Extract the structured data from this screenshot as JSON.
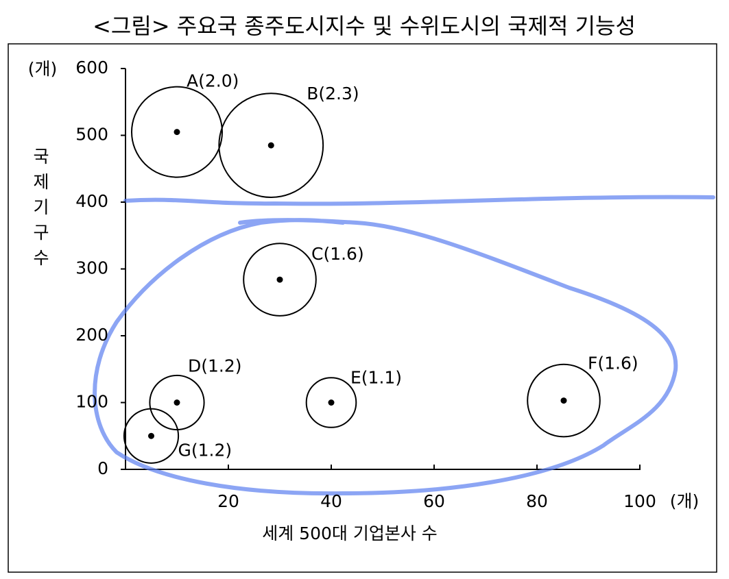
{
  "chart_data": {
    "type": "bubble",
    "title": "<그림> 주요국 종주도시지수 및 수위도시의 국제적 기능성",
    "x_label": "세계 500대 기업본사 수",
    "y_label": "국제기구수",
    "x_unit": "(개)",
    "y_unit": "(개)",
    "x": [
      10,
      28.3,
      30,
      10,
      40,
      85.2,
      5
    ],
    "y": [
      505,
      485,
      284,
      100,
      100,
      103,
      50
    ],
    "sizes": [
      2.0,
      2.3,
      1.6,
      1.2,
      1.1,
      1.6,
      1.2
    ],
    "value_labels": [
      "A(2.0)",
      "B(2.3)",
      "C(1.6)",
      "D(1.2)",
      "E(1.1)",
      "F(1.6)",
      "G(1.2)"
    ],
    "xlim": [
      0,
      100
    ],
    "ylim": [
      0,
      600
    ],
    "xticks": [
      20,
      40,
      60,
      80,
      100
    ],
    "yticks": [
      0,
      100,
      200,
      300,
      400,
      500,
      600
    ]
  }
}
